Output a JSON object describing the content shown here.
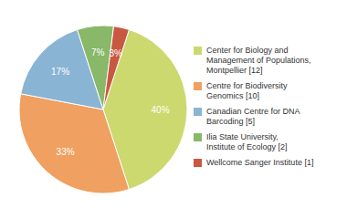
{
  "chart_data": {
    "type": "pie",
    "categories": [
      "Center for Biology and\nManagement of Populations,\nMontpellier [12]",
      "Centre for Biodiversity\nGenomics [10]",
      "Canadian Centre for DNA\nBarcoding [5]",
      "Ilia State University,\nInstitute of Ecology [2]",
      "Wellcome Sanger Institute [1]"
    ],
    "values": [
      40,
      33,
      17,
      7,
      3
    ],
    "value_labels": [
      "40%",
      "33%",
      "17%",
      "7%",
      "3%"
    ],
    "colors": [
      "#ccd96e",
      "#f0a060",
      "#8ab4d4",
      "#88b868",
      "#c85840"
    ],
    "data_labels": true,
    "legend": "right"
  }
}
